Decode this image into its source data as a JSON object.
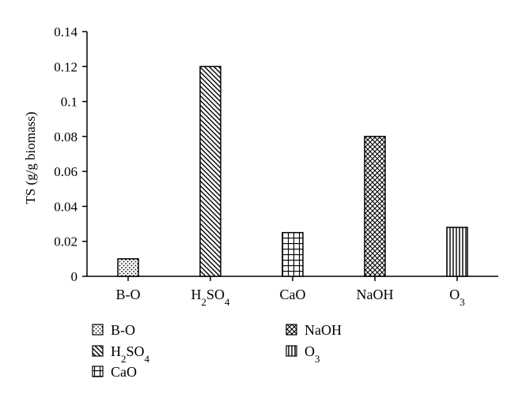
{
  "chart_data": {
    "type": "bar",
    "categories": [
      "B-O",
      "H2SO4",
      "CaO",
      "NaOH",
      "O3"
    ],
    "category_labels": [
      {
        "base": "B-O",
        "parts": [
          [
            "B-O",
            ""
          ]
        ]
      },
      {
        "base": "H2SO4",
        "parts": [
          [
            "H",
            ""
          ],
          [
            "2",
            "sub"
          ],
          [
            "SO",
            ""
          ],
          [
            "4",
            "sub"
          ]
        ]
      },
      {
        "base": "CaO",
        "parts": [
          [
            "CaO",
            ""
          ]
        ]
      },
      {
        "base": "NaOH",
        "parts": [
          [
            "NaOH",
            ""
          ]
        ]
      },
      {
        "base": "O3",
        "parts": [
          [
            "O",
            ""
          ],
          [
            "3",
            "sub"
          ]
        ]
      }
    ],
    "values": [
      0.01,
      0.12,
      0.025,
      0.08,
      0.028
    ],
    "patterns": [
      "dots",
      "diag-down",
      "grid",
      "crosshatch",
      "vertical"
    ],
    "ylabel": "TS (g/g biomass)",
    "xlabel": "",
    "ylim": [
      0,
      0.14
    ],
    "yticks": [
      0,
      0.02,
      0.04,
      0.06,
      0.08,
      0.1,
      0.12,
      0.14
    ],
    "ytick_labels": [
      "0",
      "0.02",
      "0.04",
      "0.06",
      "0.08",
      "0.1",
      "0.12",
      "0.14"
    ],
    "grid": false,
    "legend_position": "bottom",
    "legend_order": [
      0,
      3,
      1,
      4,
      2
    ]
  }
}
